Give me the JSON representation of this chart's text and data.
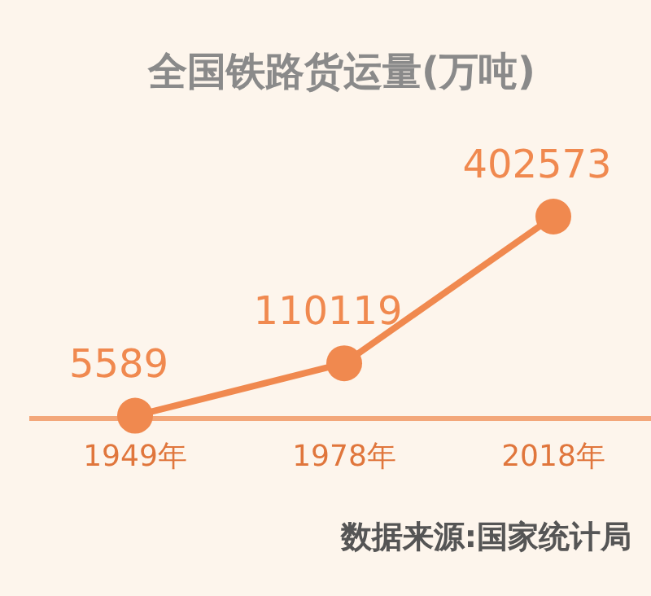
{
  "chart_data": {
    "type": "line",
    "title": "全国铁路货运量(万吨)",
    "categories": [
      "1949年",
      "1978年",
      "2018年"
    ],
    "values": [
      5589,
      110119,
      402573
    ],
    "color": "#f0894f",
    "marker": "circle",
    "data_labels": true,
    "annotations": [
      "数据来源:国家统计局"
    ]
  }
}
